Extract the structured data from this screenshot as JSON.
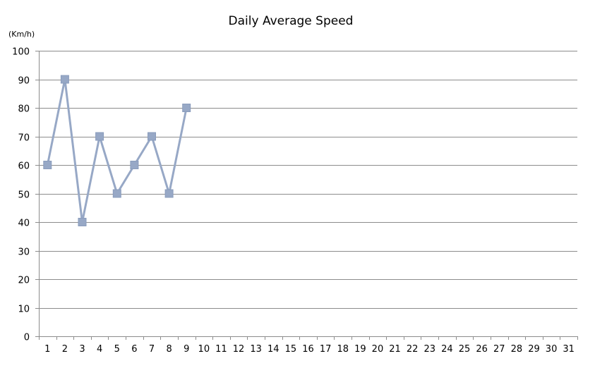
{
  "chart_data": {
    "type": "line",
    "title": "Daily Average Speed",
    "unit_label": "(Km/h)",
    "xlabel": "",
    "ylabel": "",
    "categories": [
      "1",
      "2",
      "3",
      "4",
      "5",
      "6",
      "7",
      "8",
      "9",
      "10",
      "11",
      "12",
      "13",
      "14",
      "15",
      "16",
      "17",
      "18",
      "19",
      "20",
      "21",
      "22",
      "23",
      "24",
      "25",
      "26",
      "27",
      "28",
      "29",
      "30",
      "31"
    ],
    "series": [
      {
        "values": [
          60,
          90,
          40,
          70,
          50,
          60,
          70,
          50,
          80,
          null,
          null,
          null,
          null,
          null,
          null,
          null,
          null,
          null,
          null,
          null,
          null,
          null,
          null,
          null,
          null,
          null,
          null,
          null,
          null,
          null,
          null
        ],
        "color": "#97a8c6",
        "marker": "square"
      }
    ],
    "ylim": [
      0,
      100
    ],
    "yticks": [
      0,
      10,
      20,
      30,
      40,
      50,
      60,
      70,
      80,
      90,
      100
    ],
    "grid": true,
    "legend": "none",
    "gridline_color": "#8c8c8c",
    "axis_color": "#8c8c8c"
  }
}
